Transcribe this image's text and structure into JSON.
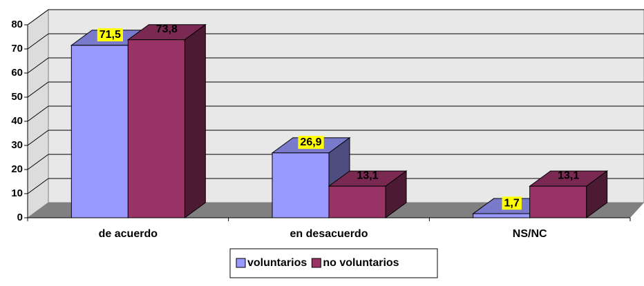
{
  "chart_data": {
    "type": "bar3d",
    "categories": [
      "de acuerdo",
      "en desacuerdo",
      "NS/NC"
    ],
    "series": [
      {
        "name": "voluntarios",
        "color": "#9999ff",
        "values": [
          71.5,
          26.9,
          1.7
        ],
        "value_labels": [
          "71,5",
          "26,9",
          "1,7"
        ]
      },
      {
        "name": "no voluntarios",
        "color": "#993366",
        "values": [
          73.8,
          13.1,
          13.1
        ],
        "value_labels": [
          "73,8",
          "13,1",
          "13,1"
        ]
      }
    ],
    "ylim": [
      0,
      80
    ],
    "yticks": [
      0,
      10,
      20,
      30,
      40,
      50,
      60,
      70,
      80
    ],
    "grid": true,
    "legend": "bottom"
  }
}
